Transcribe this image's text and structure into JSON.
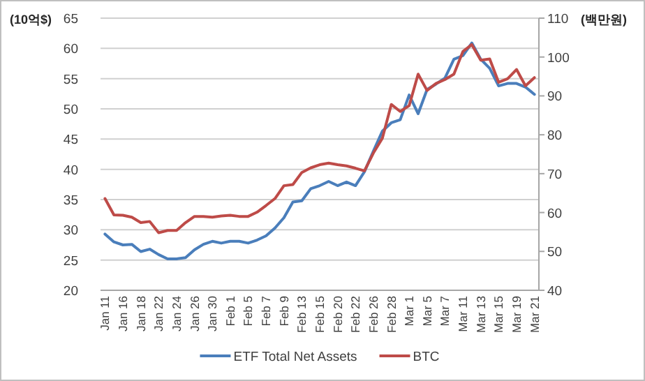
{
  "chart_data": {
    "type": "line",
    "ylabel": "(10억$)",
    "y2label": "(백만원)",
    "categories": [
      "Jan 11",
      null,
      "Jan 16",
      null,
      "Jan 18",
      null,
      "Jan 22",
      null,
      "Jan 24",
      null,
      "Jan 26",
      null,
      "Jan 30",
      null,
      "Feb 1",
      null,
      "Feb 5",
      null,
      "Feb 7",
      null,
      "Feb 9",
      null,
      "Feb 13",
      null,
      "Feb 15",
      null,
      "Feb 20",
      null,
      "Feb 22",
      null,
      "Feb 26",
      null,
      "Feb 28",
      null,
      "Mar 1",
      null,
      "Mar 5",
      null,
      "Mar 7",
      null,
      "Mar 11",
      null,
      "Mar 13",
      null,
      "Mar 15",
      null,
      "Mar 19",
      null,
      "Mar 21"
    ],
    "series": [
      {
        "name": "ETF Total Net Assets",
        "color": "#4a7ebb",
        "values": [
          29.3,
          28.0,
          27.5,
          27.6,
          26.4,
          26.8,
          25.9,
          25.2,
          25.2,
          25.4,
          26.7,
          27.6,
          28.1,
          27.8,
          28.1,
          28.1,
          27.8,
          28.3,
          29.0,
          30.3,
          32.0,
          34.6,
          34.8,
          36.8,
          37.3,
          38.0,
          37.3,
          37.9,
          37.3,
          39.6,
          43.0,
          46.3,
          47.7,
          48.2,
          52.3,
          49.2,
          53.2,
          54.1,
          55.1,
          58.2,
          58.8,
          60.9,
          58.2,
          56.7,
          53.8,
          54.2,
          54.2,
          53.6,
          52.4
        ]
      },
      {
        "name": "BTC",
        "color": "#be4b48",
        "axis": "y2",
        "values": [
          63.6,
          59.4,
          59.3,
          58.8,
          57.4,
          57.7,
          54.8,
          55.4,
          55.4,
          57.4,
          59.0,
          59.0,
          58.8,
          59.1,
          59.3,
          59.0,
          59.0,
          60.1,
          61.8,
          63.6,
          66.9,
          67.2,
          70.3,
          71.5,
          72.3,
          72.7,
          72.3,
          72.0,
          71.4,
          70.7,
          75.3,
          79.1,
          87.8,
          86.0,
          87.5,
          95.6,
          91.4,
          93.2,
          94.2,
          95.6,
          101.4,
          103.2,
          99.2,
          99.5,
          93.5,
          94.4,
          96.8,
          92.6,
          94.7
        ]
      }
    ],
    "ylim": [
      20,
      65
    ],
    "yticks": [
      20,
      25,
      30,
      35,
      40,
      45,
      50,
      55,
      60,
      65
    ],
    "y2lim": [
      40,
      110
    ],
    "y2ticks": [
      40,
      50,
      60,
      70,
      80,
      90,
      100,
      110
    ],
    "grid": "y",
    "legend": "bottom",
    "marker": "none",
    "line_style": "solid"
  }
}
